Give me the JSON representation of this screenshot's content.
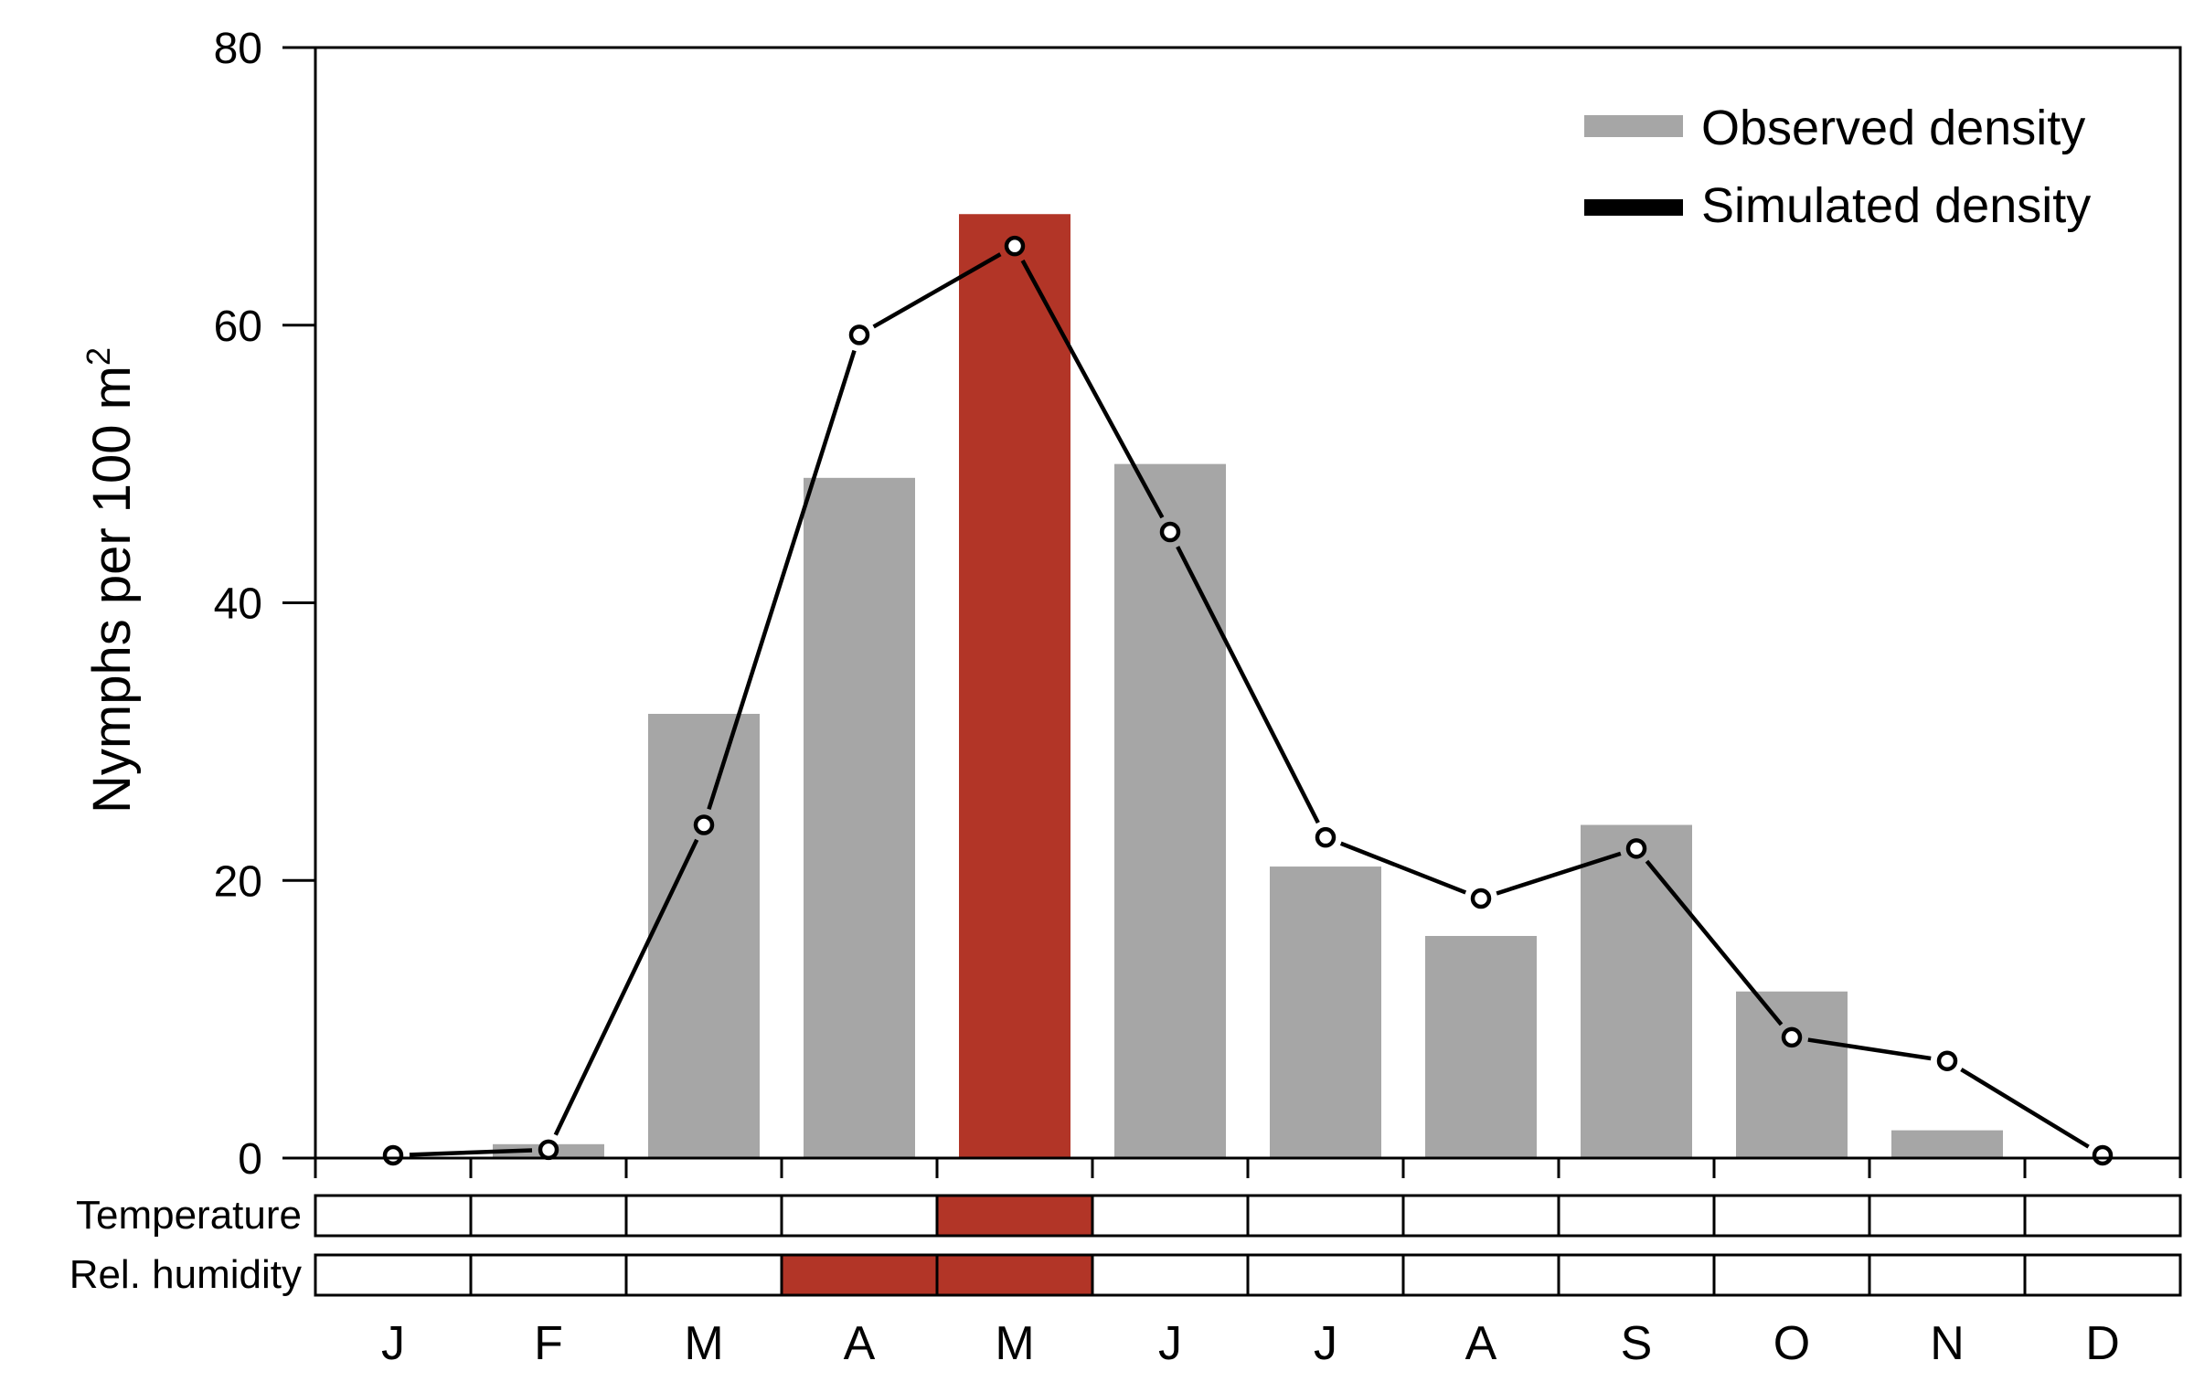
{
  "chart_data": {
    "type": "bar",
    "categories": [
      "J",
      "F",
      "M",
      "A",
      "M",
      "J",
      "J",
      "A",
      "S",
      "O",
      "N",
      "D"
    ],
    "series": [
      {
        "name": "Observed density",
        "kind": "bar",
        "values": [
          0,
          1,
          32,
          49,
          68,
          50,
          21,
          16,
          24,
          12,
          2,
          0
        ]
      },
      {
        "name": "Simulated density",
        "kind": "line",
        "values": [
          0.2,
          0.6,
          24,
          59.3,
          65.7,
          45.1,
          23.1,
          18.7,
          22.3,
          8.7,
          7,
          0.2
        ]
      }
    ],
    "highlight_bar_index": 4,
    "ylabel": "Nymphs per 100 m",
    "ylabel_sup": "2",
    "ylim": [
      0,
      80
    ],
    "yticks": [
      0,
      20,
      40,
      60,
      80
    ],
    "legend_position": "top-right",
    "grid": false,
    "colors": {
      "bar": "#a6a6a6",
      "highlight": "#b23527",
      "line": "#000000"
    },
    "strips": [
      {
        "label": "Temperature",
        "highlighted": [
          false,
          false,
          false,
          false,
          true,
          false,
          false,
          false,
          false,
          false,
          false,
          false
        ]
      },
      {
        "label": "Rel. humidity",
        "highlighted": [
          false,
          false,
          false,
          true,
          true,
          false,
          false,
          false,
          false,
          false,
          false,
          false
        ]
      }
    ]
  }
}
